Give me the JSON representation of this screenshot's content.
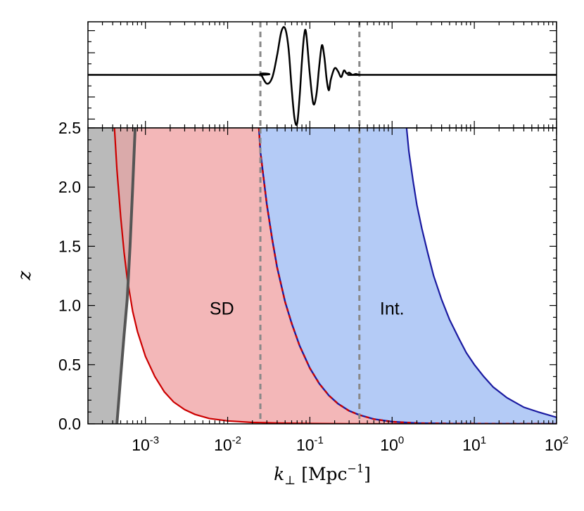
{
  "chart_data": [
    {
      "panel": "top",
      "type": "line",
      "title": "",
      "xlabel": "",
      "ylabel": "",
      "x_scale": "log",
      "xlim": [
        0.0002,
        100
      ],
      "ylim": [
        -1.2,
        1.2
      ],
      "yticks_labeled": false,
      "series": [
        {
          "color": "#000000",
          "x": [
            0.0002,
            0.022,
            0.025,
            0.03,
            0.035,
            0.04,
            0.045,
            0.05,
            0.055,
            0.06,
            0.065,
            0.07,
            0.075,
            0.08,
            0.085,
            0.09,
            0.1,
            0.11,
            0.12,
            0.13,
            0.14,
            0.15,
            0.16,
            0.17,
            0.18,
            0.2,
            0.22,
            0.24,
            0.26,
            0.28,
            0.3,
            0.33,
            0.36,
            0.4,
            0.45,
            100
          ],
          "y": [
            0,
            0,
            0.02,
            -0.2,
            -0.05,
            0.45,
            0.98,
            1.05,
            0.6,
            -0.3,
            -0.98,
            -1.1,
            -0.5,
            0.3,
            0.88,
            0.95,
            0.0,
            -0.65,
            -0.45,
            0.2,
            0.67,
            0.4,
            -0.1,
            -0.35,
            -0.1,
            0.15,
            0.08,
            -0.05,
            0.1,
            0.03,
            0.05,
            0.0,
            0.02,
            0.0,
            0.0,
            0
          ]
        }
      ],
      "vlines": [
        0.025,
        0.4
      ],
      "vline_style": "dashed gray"
    },
    {
      "panel": "bottom",
      "type": "area",
      "title": "",
      "xlabel": "k_⊥ [Mpc⁻¹]",
      "xlabel_symbol": "k",
      "xlabel_subscript": "⊥",
      "xlabel_units_main": "[Mpc",
      "xlabel_units_sup": "−1",
      "xlabel_units_close": "]",
      "ylabel": "z",
      "x_scale": "log",
      "xlim": [
        0.0002,
        100
      ],
      "ylim": [
        0,
        2.5
      ],
      "xtick_values": [
        0.001,
        0.01,
        0.1,
        1,
        10,
        100
      ],
      "xtick_labels": [
        {
          "base": "10",
          "exp": "-3"
        },
        {
          "base": "10",
          "exp": "-2"
        },
        {
          "base": "10",
          "exp": "-1"
        },
        {
          "base": "10",
          "exp": "0"
        },
        {
          "base": "10",
          "exp": "1"
        },
        {
          "base": "10",
          "exp": "2"
        }
      ],
      "ytick_values": [
        0.0,
        0.5,
        1.0,
        1.5,
        2.0,
        2.5
      ],
      "ytick_labels": [
        "0.0",
        "0.5",
        "1.0",
        "1.5",
        "2.0",
        "2.5"
      ],
      "regions": [
        {
          "label": "",
          "fill": "#c8c8c8",
          "edge": "#555555",
          "edge_x": [
            0.00045,
            0.0005,
            0.00055,
            0.0006,
            0.00065,
            0.0007,
            0.00075
          ],
          "edge_z": [
            0.0,
            0.4,
            0.75,
            1.05,
            1.5,
            2.0,
            2.5
          ]
        },
        {
          "label": "SD",
          "label_x": 0.0085,
          "label_z": 0.97,
          "fill": "#f2b3b4",
          "edge": "#cc0000",
          "low_x": [
            0.00042,
            0.00045,
            0.0005,
            0.00055,
            0.0006,
            0.0007,
            0.0008,
            0.001,
            0.0013,
            0.0017,
            0.0022,
            0.003,
            0.004,
            0.006,
            0.01,
            0.02,
            0.04,
            0.1,
            0.3,
            1,
            100
          ],
          "low_z": [
            2.5,
            2.15,
            1.75,
            1.45,
            1.23,
            0.95,
            0.78,
            0.57,
            0.4,
            0.27,
            0.185,
            0.12,
            0.08,
            0.045,
            0.025,
            0.012,
            0.007,
            0.003,
            0.001,
            0.0005,
            0.0001
          ],
          "high_x": [
            0.024,
            0.025,
            0.03,
            0.035,
            0.04,
            0.05,
            0.06,
            0.075,
            0.1,
            0.13,
            0.17,
            0.22,
            0.3,
            0.4,
            0.6,
            1,
            2,
            5,
            100
          ],
          "high_z": [
            2.5,
            2.3,
            1.85,
            1.55,
            1.32,
            1.03,
            0.85,
            0.66,
            0.47,
            0.34,
            0.24,
            0.17,
            0.11,
            0.075,
            0.04,
            0.018,
            0.006,
            0.002,
            0.0002
          ]
        },
        {
          "label": "Int.",
          "label_x": 1.0,
          "label_z": 0.97,
          "fill": "#b0c8f6",
          "edge": "#1a1aa0",
          "low_x": [
            0.024,
            0.025,
            0.03,
            0.035,
            0.04,
            0.05,
            0.06,
            0.075,
            0.1,
            0.13,
            0.17,
            0.22,
            0.3,
            0.4,
            0.6,
            1,
            2,
            5,
            100
          ],
          "low_z": [
            2.5,
            2.3,
            1.85,
            1.55,
            1.32,
            1.03,
            0.85,
            0.66,
            0.47,
            0.34,
            0.24,
            0.17,
            0.11,
            0.075,
            0.04,
            0.018,
            0.006,
            0.002,
            0.0002
          ],
          "high_x": [
            1.5,
            1.6,
            1.8,
            2.0,
            2.3,
            2.7,
            3.2,
            4,
            5,
            6.5,
            8,
            10,
            13,
            17,
            25,
            40,
            60,
            100
          ],
          "high_z": [
            2.5,
            2.3,
            2.05,
            1.85,
            1.65,
            1.45,
            1.25,
            1.05,
            0.88,
            0.72,
            0.6,
            0.5,
            0.4,
            0.31,
            0.22,
            0.14,
            0.1,
            0.055
          ]
        }
      ],
      "vlines": [
        0.025,
        0.4
      ],
      "vline_style": "dashed gray"
    }
  ]
}
